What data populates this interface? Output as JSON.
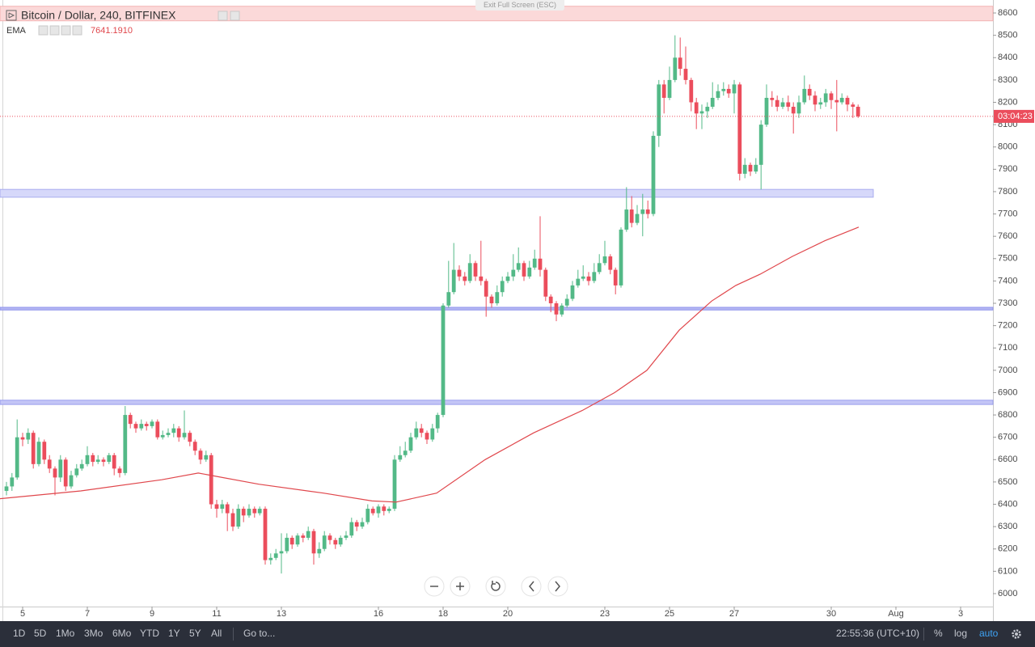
{
  "chart_data": {
    "type": "candlestick",
    "title": "Bitcoin / Dollar, 240, BITFINEX",
    "x": [
      4.5,
      4.67,
      4.83,
      5,
      5.17,
      5.33,
      5.5,
      5.67,
      5.83,
      6,
      6.17,
      6.33,
      6.5,
      6.67,
      6.83,
      7,
      7.17,
      7.33,
      7.5,
      7.67,
      7.83,
      8,
      8.17,
      8.33,
      8.5,
      8.67,
      8.83,
      9,
      9.17,
      9.33,
      9.5,
      9.67,
      9.83,
      10,
      10.17,
      10.33,
      10.5,
      10.67,
      10.83,
      11,
      11.17,
      11.33,
      11.5,
      11.67,
      11.83,
      12,
      12.17,
      12.33,
      12.5,
      12.67,
      12.83,
      13,
      13.17,
      13.33,
      13.5,
      13.67,
      13.83,
      14,
      14.17,
      14.33,
      14.5,
      14.67,
      14.83,
      15,
      15.17,
      15.33,
      15.5,
      15.67,
      15.83,
      16,
      16.17,
      16.33,
      16.5,
      16.67,
      16.83,
      17,
      17.17,
      17.33,
      17.5,
      17.67,
      17.83,
      18,
      18.17,
      18.33,
      18.5,
      18.67,
      18.83,
      19,
      19.17,
      19.33,
      19.5,
      19.67,
      19.83,
      20,
      20.17,
      20.33,
      20.5,
      20.67,
      20.83,
      21,
      21.17,
      21.33,
      21.5,
      21.67,
      21.83,
      22,
      22.17,
      22.33,
      22.5,
      22.67,
      22.83,
      23,
      23.17,
      23.33,
      23.5,
      23.67,
      23.83,
      24,
      24.17,
      24.33,
      24.5,
      24.67,
      24.83,
      25,
      25.17,
      25.33,
      25.5,
      25.67,
      25.83,
      26,
      26.17,
      26.33,
      26.5,
      26.67,
      26.83,
      27,
      27.17,
      27.33,
      27.5,
      27.67,
      27.83,
      28,
      28.17,
      28.33,
      28.5,
      28.67,
      28.83,
      29,
      29.17,
      29.33,
      29.5,
      29.67,
      29.83,
      30,
      30.17,
      30.33,
      30.5,
      30.67,
      30.83
    ],
    "open": [
      6460,
      6480,
      6520,
      6700,
      6690,
      6720,
      6580,
      6680,
      6600,
      6560,
      6520,
      6600,
      6480,
      6530,
      6560,
      6580,
      6620,
      6590,
      6600,
      6590,
      6620,
      6560,
      6540,
      6800,
      6760,
      6740,
      6760,
      6750,
      6770,
      6700,
      6710,
      6720,
      6740,
      6700,
      6720,
      6680,
      6640,
      6600,
      6620,
      6400,
      6380,
      6400,
      6360,
      6300,
      6380,
      6350,
      6380,
      6360,
      6380,
      6150,
      6160,
      6180,
      6190,
      6250,
      6220,
      6260,
      6250,
      6280,
      6180,
      6200,
      6260,
      6240,
      6220,
      6250,
      6260,
      6320,
      6300,
      6320,
      6380,
      6360,
      6390,
      6370,
      6380,
      6600,
      6620,
      6640,
      6700,
      6740,
      6720,
      6690,
      6740,
      6800,
      7290,
      7350,
      7450,
      7420,
      7400,
      7480,
      7420,
      7400,
      7330,
      7300,
      7350,
      7400,
      7420,
      7450,
      7480,
      7420,
      7460,
      7500,
      7450,
      7330,
      7300,
      7250,
      7290,
      7320,
      7380,
      7410,
      7420,
      7400,
      7440,
      7480,
      7510,
      7450,
      7380,
      7630,
      7720,
      7660,
      7700,
      7720,
      7700,
      8050,
      8280,
      8220,
      8300,
      8400,
      8350,
      8300,
      8200,
      8150,
      8160,
      8180,
      8220,
      8250,
      8260,
      8240,
      8280,
      7880,
      7920,
      7890,
      7920,
      8100,
      8220,
      8210,
      8180,
      8200,
      8180,
      8150,
      8200,
      8260,
      8230,
      8190,
      8200,
      8240,
      8210,
      8200,
      8220,
      8190,
      8180
    ],
    "high": [
      6500,
      6540,
      6780,
      6720,
      6740,
      6730,
      6700,
      6690,
      6620,
      6570,
      6620,
      6610,
      6550,
      6580,
      6600,
      6660,
      6630,
      6620,
      6610,
      6630,
      6630,
      6570,
      6840,
      6810,
      6770,
      6780,
      6770,
      6780,
      6780,
      6730,
      6740,
      6760,
      6750,
      6820,
      6730,
      6690,
      6650,
      6640,
      6630,
      6420,
      6420,
      6410,
      6380,
      6400,
      6390,
      6400,
      6390,
      6390,
      6390,
      6180,
      6200,
      6270,
      6270,
      6260,
      6270,
      6270,
      6300,
      6290,
      6230,
      6280,
      6270,
      6250,
      6260,
      6280,
      6340,
      6330,
      6340,
      6400,
      6390,
      6400,
      6400,
      6390,
      6620,
      6660,
      6680,
      6720,
      6770,
      6760,
      6730,
      6760,
      6810,
      7300,
      7490,
      7570,
      7470,
      7440,
      7520,
      7490,
      7580,
      7410,
      7340,
      7380,
      7420,
      7440,
      7520,
      7550,
      7490,
      7490,
      7540,
      7690,
      7460,
      7340,
      7310,
      7300,
      7340,
      7400,
      7450,
      7470,
      7440,
      7480,
      7520,
      7580,
      7520,
      7460,
      7640,
      7820,
      7780,
      7740,
      7790,
      7760,
      8070,
      8300,
      8300,
      8360,
      8500,
      8490,
      8450,
      8310,
      8220,
      8190,
      8200,
      8290,
      8280,
      8290,
      8280,
      8300,
      8290,
      7950,
      7930,
      7950,
      8120,
      8280,
      8250,
      8230,
      8220,
      8230,
      8200,
      8230,
      8320,
      8280,
      8250,
      8220,
      8260,
      8250,
      8300,
      8240,
      8230,
      8200,
      8190
    ],
    "low": [
      6440,
      6460,
      6510,
      6660,
      6670,
      6560,
      6570,
      6580,
      6540,
      6440,
      6500,
      6460,
      6470,
      6520,
      6550,
      6570,
      6570,
      6580,
      6570,
      6580,
      6530,
      6520,
      6530,
      6740,
      6720,
      6730,
      6730,
      6740,
      6690,
      6690,
      6700,
      6700,
      6680,
      6690,
      6660,
      6620,
      6580,
      6590,
      6380,
      6340,
      6360,
      6280,
      6280,
      6290,
      6320,
      6340,
      6340,
      6350,
      6130,
      6130,
      6150,
      6090,
      6180,
      6200,
      6210,
      6230,
      6240,
      6130,
      6160,
      6190,
      6220,
      6200,
      6210,
      6240,
      6250,
      6280,
      6290,
      6310,
      6350,
      6340,
      6350,
      6360,
      6370,
      6590,
      6610,
      6630,
      6690,
      6700,
      6670,
      6680,
      6720,
      6790,
      7280,
      7340,
      7400,
      7380,
      7390,
      7400,
      7380,
      7240,
      7280,
      7290,
      7330,
      7390,
      7400,
      7440,
      7400,
      7410,
      7450,
      7420,
      7310,
      7260,
      7220,
      7240,
      7280,
      7310,
      7370,
      7400,
      7380,
      7390,
      7430,
      7470,
      7430,
      7340,
      7370,
      7620,
      7640,
      7650,
      7600,
      7680,
      7690,
      8000,
      8150,
      8210,
      8290,
      8320,
      8280,
      8160,
      8080,
      8080,
      8130,
      8170,
      8210,
      8230,
      8220,
      8150,
      7850,
      7860,
      7870,
      7880,
      7810,
      8090,
      8180,
      8160,
      8170,
      8160,
      8060,
      8130,
      8190,
      8210,
      8160,
      8170,
      8180,
      8170,
      8070,
      8190,
      8160,
      8130,
      8130
    ],
    "close": [
      6480,
      6520,
      6700,
      6690,
      6720,
      6580,
      6680,
      6600,
      6560,
      6520,
      6600,
      6480,
      6530,
      6560,
      6580,
      6620,
      6590,
      6600,
      6590,
      6620,
      6560,
      6540,
      6800,
      6760,
      6740,
      6760,
      6750,
      6770,
      6700,
      6710,
      6720,
      6740,
      6700,
      6720,
      6680,
      6640,
      6600,
      6620,
      6400,
      6380,
      6400,
      6360,
      6300,
      6380,
      6350,
      6380,
      6360,
      6380,
      6150,
      6160,
      6180,
      6190,
      6250,
      6220,
      6260,
      6250,
      6280,
      6180,
      6200,
      6260,
      6240,
      6220,
      6250,
      6260,
      6320,
      6300,
      6320,
      6380,
      6360,
      6390,
      6370,
      6380,
      6600,
      6620,
      6640,
      6700,
      6740,
      6720,
      6690,
      6740,
      6800,
      7290,
      7350,
      7450,
      7420,
      7400,
      7480,
      7420,
      7400,
      7330,
      7300,
      7350,
      7400,
      7420,
      7450,
      7480,
      7420,
      7460,
      7500,
      7450,
      7330,
      7300,
      7250,
      7290,
      7320,
      7380,
      7410,
      7420,
      7400,
      7440,
      7480,
      7510,
      7450,
      7380,
      7630,
      7720,
      7660,
      7700,
      7720,
      7700,
      8050,
      8280,
      8220,
      8300,
      8400,
      8350,
      8300,
      8200,
      8150,
      8160,
      8180,
      8220,
      8250,
      8260,
      8240,
      8280,
      7880,
      7920,
      7890,
      7920,
      8100,
      8220,
      8210,
      8180,
      8200,
      8180,
      8150,
      8200,
      8260,
      8230,
      8190,
      8200,
      8240,
      8210,
      8200,
      8220,
      8190,
      8180,
      8137
    ],
    "up_color": "#53b987",
    "down_color": "#eb4d5c",
    "xlim": [
      4.3,
      35
    ],
    "xticks": [
      5,
      7,
      9,
      11,
      13,
      16,
      18,
      20,
      23,
      25,
      27,
      30,
      {
        "value": 32,
        "label": "Aug"
      },
      {
        "value": 34,
        "label": "3"
      }
    ],
    "ylim": [
      5942,
      8640
    ],
    "yticks": [
      6000,
      6100,
      6200,
      6300,
      6400,
      6500,
      6600,
      6700,
      6800,
      6900,
      7000,
      7100,
      7200,
      7300,
      7400,
      7500,
      7600,
      7700,
      7800,
      7900,
      8000,
      8100,
      8200,
      8300,
      8400,
      8500,
      8600
    ],
    "series": [
      {
        "name": "EMA",
        "color": "#e0474c",
        "x": [
          4.3,
          6.8,
          9.3,
          10.43,
          10.8,
          12.3,
          14.3,
          15.8,
          16.55,
          17.8,
          19.3,
          20.8,
          22.3,
          23.3,
          24.3,
          25.3,
          26.3,
          27.05,
          27.8,
          28.8,
          29.8,
          30.85
        ],
        "values": [
          6425,
          6460,
          6510,
          6540,
          6530,
          6490,
          6450,
          6415,
          6410,
          6450,
          6600,
          6720,
          6820,
          6900,
          7000,
          7180,
          7310,
          7380,
          7430,
          7510,
          7580,
          7641.191
        ],
        "last_label": "7641.1910"
      }
    ],
    "zones": [
      {
        "from": 8565,
        "to": 8630,
        "color": "#fbd9d9",
        "border": "#f3b3b3"
      },
      {
        "from": 7775,
        "to": 7810,
        "end": 31.3,
        "color": "#d6d8fa",
        "border": "#a9acef"
      },
      {
        "from": 7270,
        "to": 7282,
        "color": "#b3b6f3",
        "border": "#9296ec"
      },
      {
        "from": 6847,
        "to": 6866,
        "color": "#c3c5f6",
        "border": "#9a9eee"
      }
    ],
    "countdown": "03:04:23"
  },
  "ui": {
    "exit_full_screen": "Exit Full Screen (ESC)",
    "timeframes": [
      "1D",
      "5D",
      "1Mo",
      "3Mo",
      "6Mo",
      "YTD",
      "1Y",
      "5Y",
      "All"
    ],
    "goto": "Go to...",
    "clock": "22:55:36 (UTC+10)",
    "scale_buttons": [
      "%",
      "log",
      "auto"
    ]
  }
}
